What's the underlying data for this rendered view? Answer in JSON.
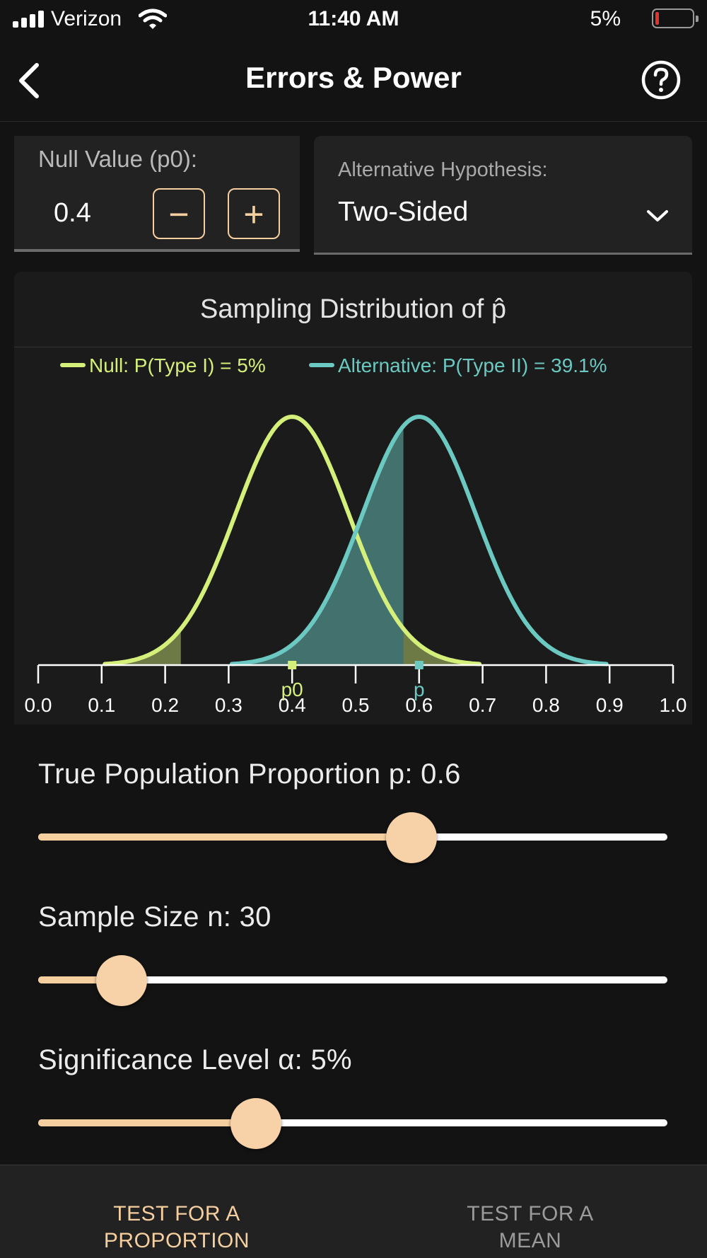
{
  "status_bar": {
    "carrier": "Verizon",
    "time": "11:40 AM",
    "battery_percent": "5%"
  },
  "nav": {
    "title": "Errors & Power",
    "back_icon": "chevron-left-icon",
    "help_icon": "question-circle-icon"
  },
  "null_value": {
    "label": "Null Value (p0):",
    "value": "0.4",
    "minus_label": "−",
    "plus_label": "+"
  },
  "alternative": {
    "label": "Alternative Hypothesis:",
    "value": "Two-Sided",
    "icon": "chevron-down-icon"
  },
  "colors": {
    "accent": "#f5cfa0",
    "null_curve": "#d4f07a",
    "alt_curve": "#6bc9c2",
    "background": "#131313",
    "panel": "#222222"
  },
  "chart_data": {
    "type": "line",
    "title": "Sampling Distribution of p̂",
    "legend_position": "top",
    "series": [
      {
        "name": "Null: P(Type I) = 5%",
        "mean": 0.4,
        "sd": 0.0894,
        "color": "#d4f07a"
      },
      {
        "name": "Alternative: P(Type II) = 39.1%",
        "mean": 0.6,
        "sd": 0.0894,
        "color": "#6bc9c2"
      }
    ],
    "rejection_bounds": [
      0.2247,
      0.5753
    ],
    "xlim": [
      0.0,
      1.0
    ],
    "x_ticks": [
      "0.0",
      "0.1",
      "0.2",
      "0.3",
      "0.4",
      "0.5",
      "0.6",
      "0.7",
      "0.8",
      "0.9",
      "1.0"
    ],
    "markers": [
      {
        "label": "p0",
        "x": 0.4,
        "color": "#d4f07a"
      },
      {
        "label": "p",
        "x": 0.6,
        "color": "#6bc9c2"
      }
    ]
  },
  "sliders": {
    "proportion": {
      "label": "True Population Proportion p: 0.6",
      "value": 0.6,
      "fill": 0.593
    },
    "sample_size": {
      "label": "Sample Size n: 30",
      "value": 30,
      "fill": 0.133
    },
    "significance": {
      "label": "Significance Level α: 5%",
      "value": 0.05,
      "fill": 0.346
    }
  },
  "tabs": [
    {
      "label": "TEST FOR A\nPROPORTION",
      "active": true
    },
    {
      "label": "TEST FOR A\nMEAN",
      "active": false
    }
  ]
}
